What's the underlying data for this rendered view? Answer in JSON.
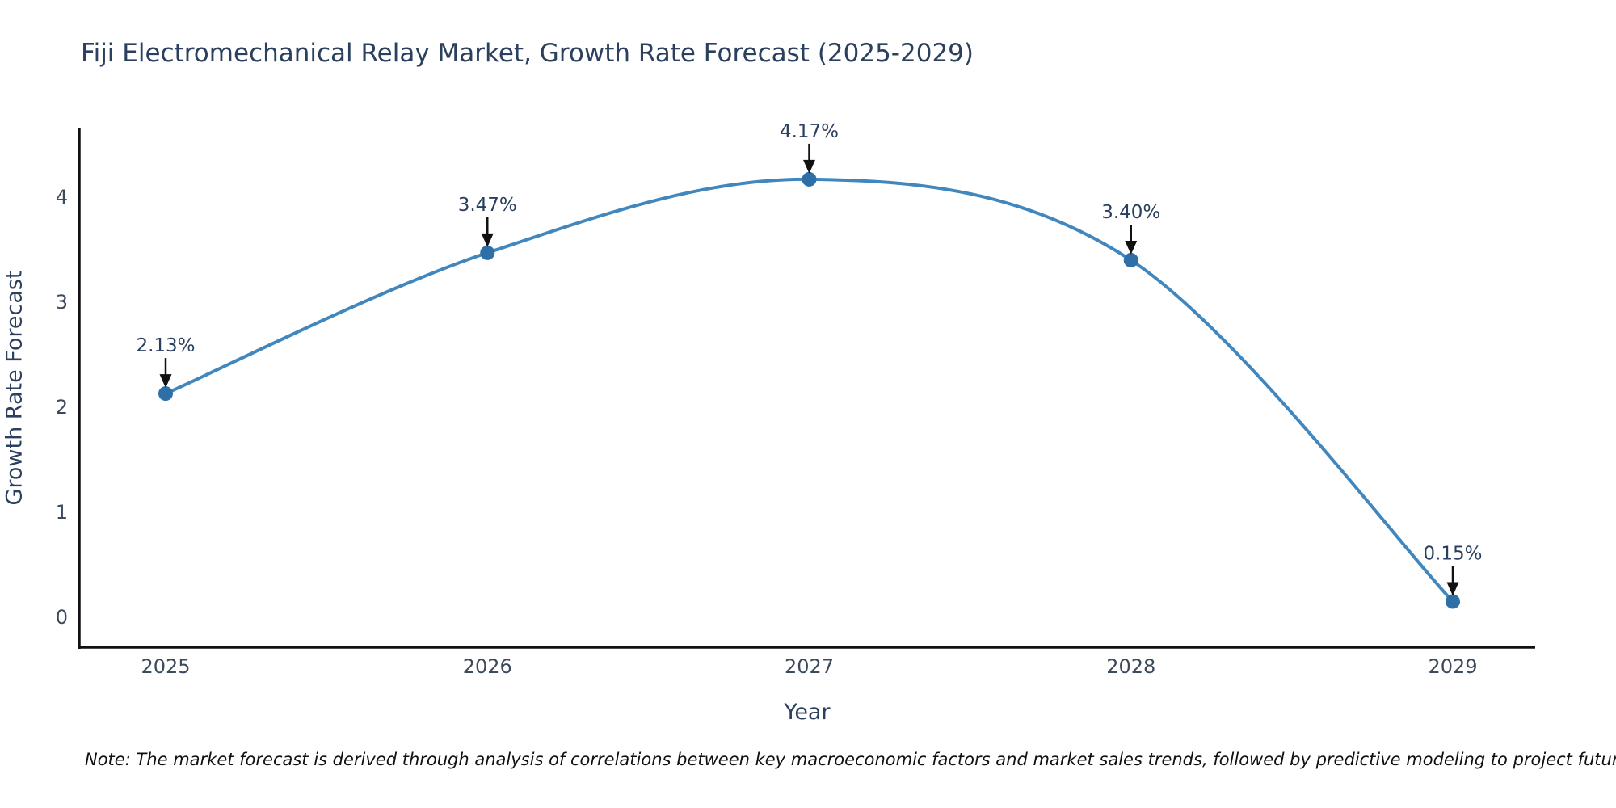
{
  "title": "Fiji Electromechanical Relay Market, Growth Rate Forecast (2025-2029)",
  "note": "Note: The market forecast is derived through analysis of correlations between key macroeconomic factors and market sales trends, followed by predictive modeling to project future sales.",
  "chart_data": {
    "type": "line",
    "title": "Fiji Electromechanical Relay Market, Growth Rate Forecast (2025-2029)",
    "xlabel": "Year",
    "ylabel": "Growth Rate Forecast",
    "categories": [
      "2025",
      "2026",
      "2027",
      "2028",
      "2029"
    ],
    "values": [
      2.13,
      3.47,
      4.17,
      3.4,
      0.15
    ],
    "point_labels": [
      "2.13%",
      "3.47%",
      "4.17%",
      "3.40%",
      "0.15%"
    ],
    "y_ticks": [
      0,
      1,
      2,
      3,
      4
    ],
    "ylim": [
      -0.3,
      4.7
    ],
    "grid": false,
    "legend": "none",
    "annotation_style": "arrow-down-to-point",
    "colors": {
      "line": "#4187bd",
      "marker": "#2e6fa8",
      "axis": "#111111",
      "arrow": "#111111",
      "title_text": "#2b3f5e",
      "tick_text": "#3d4a5c"
    }
  }
}
